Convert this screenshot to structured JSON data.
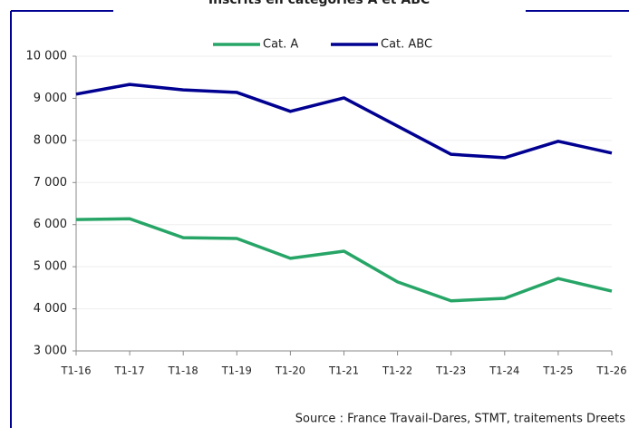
{
  "chart_data": {
    "type": "line",
    "title": "Inscrits en catégories A et ABC",
    "source": "Source : France Travail-Dares, STMT, traitements Dreets",
    "categories": [
      "T1-16",
      "T1-17",
      "T1-18",
      "T1-19",
      "T1-20",
      "T1-21",
      "T1-22",
      "T1-23",
      "T1-24",
      "T1-25",
      "T1-26"
    ],
    "series": [
      {
        "name": "Cat. A",
        "color": "#27a567",
        "values": [
          6120,
          6140,
          5690,
          5670,
          5200,
          5370,
          4640,
          4190,
          4250,
          4720,
          4420
        ]
      },
      {
        "name": "Cat. ABC",
        "color": "#000091",
        "values": [
          9100,
          9330,
          9200,
          9140,
          8690,
          9010,
          8340,
          7670,
          7590,
          7980,
          7700
        ]
      }
    ],
    "ylim": [
      3000,
      10000
    ],
    "yticks": [
      {
        "value": 3000,
        "label": "3 000"
      },
      {
        "value": 4000,
        "label": "4 000"
      },
      {
        "value": 5000,
        "label": "5 000"
      },
      {
        "value": 6000,
        "label": "6 000"
      },
      {
        "value": 7000,
        "label": "7 000"
      },
      {
        "value": 8000,
        "label": "8 000"
      },
      {
        "value": 9000,
        "label": "9 000"
      },
      {
        "value": 10000,
        "label": "10 000"
      }
    ],
    "grid": true,
    "legend": "top"
  }
}
